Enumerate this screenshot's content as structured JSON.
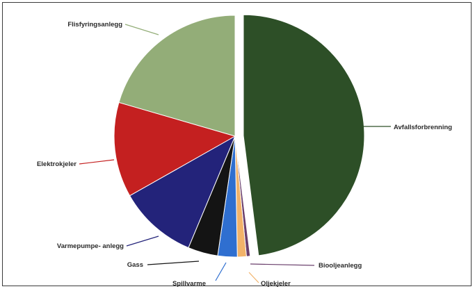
{
  "chart_data": {
    "type": "pie",
    "title": "",
    "slices": [
      {
        "label": "Avfallsforbrenning",
        "value": 48.0,
        "color": "#2d4f27",
        "exploded": true
      },
      {
        "label": "Biooljeanlegg",
        "value": 0.5,
        "color": "#6a3f6c"
      },
      {
        "label": "Oljekjeler",
        "value": 1.2,
        "color": "#f2b36a"
      },
      {
        "label": "Spillvarme",
        "value": 2.6,
        "color": "#2f6fd0"
      },
      {
        "label": "Gass",
        "value": 4.0,
        "color": "#141414"
      },
      {
        "label": "Varmepumpe- anlegg",
        "value": 10.5,
        "color": "#23237a"
      },
      {
        "label": "Elektrokjeler",
        "value": 12.7,
        "color": "#c42020"
      },
      {
        "label": "Flisfyringsanlegg",
        "value": 20.5,
        "color": "#93ad78"
      }
    ]
  }
}
